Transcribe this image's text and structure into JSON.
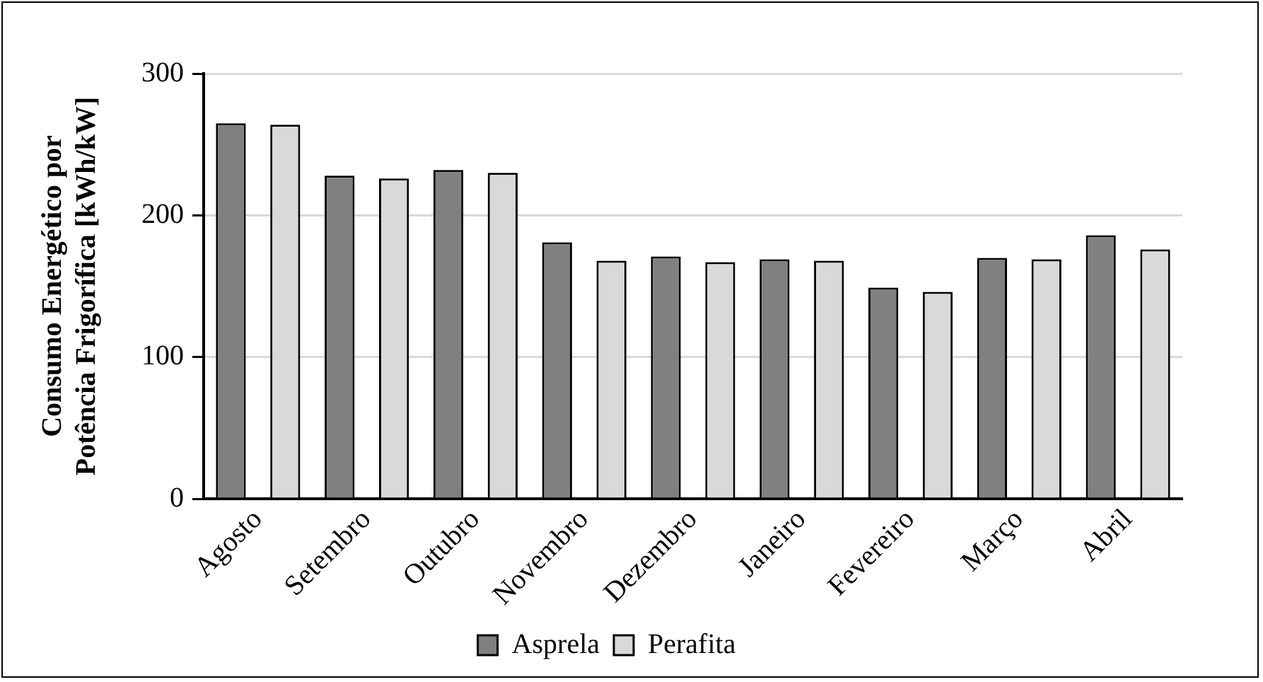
{
  "chart_data": {
    "type": "bar",
    "ylabel": "Consumo Energético por\nPotência Frigorífica [kWh/kW]",
    "categories": [
      "Agosto",
      "Setembro",
      "Outubro",
      "Novembro",
      "Dezembro",
      "Janeiro",
      "Fevereiro",
      "Março",
      "Abril"
    ],
    "series": [
      {
        "name": "Asprela",
        "color": "#808080",
        "values": [
          265,
          228,
          232,
          181,
          171,
          169,
          149,
          170,
          186
        ]
      },
      {
        "name": "Perafita",
        "color": "#d9d9d9",
        "values": [
          264,
          226,
          230,
          168,
          167,
          168,
          146,
          169,
          176
        ]
      }
    ],
    "ylim": [
      0,
      300
    ],
    "yticks": [
      0,
      100,
      200,
      300
    ],
    "grid": "y",
    "legend": "bottom"
  }
}
